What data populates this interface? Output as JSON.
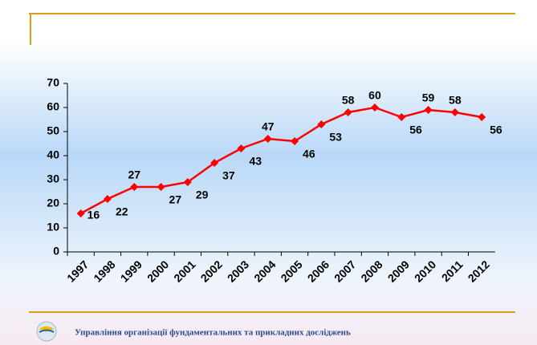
{
  "chart_data": {
    "type": "line",
    "categories": [
      "1997",
      "1998",
      "1999",
      "2000",
      "2001",
      "2002",
      "2003",
      "2004",
      "2005",
      "2006",
      "2007",
      "2008",
      "2009",
      "2010",
      "2011",
      "2012"
    ],
    "values": [
      16,
      22,
      27,
      27,
      29,
      37,
      43,
      47,
      46,
      53,
      58,
      60,
      56,
      59,
      58,
      56
    ],
    "color": "#ff0000",
    "ylim": [
      0,
      70
    ],
    "yticks": [
      0,
      10,
      20,
      30,
      40,
      50,
      60,
      70
    ],
    "grid": false
  },
  "footer": {
    "text": "Управління організації фундаментальних та прикладних досліджень"
  }
}
